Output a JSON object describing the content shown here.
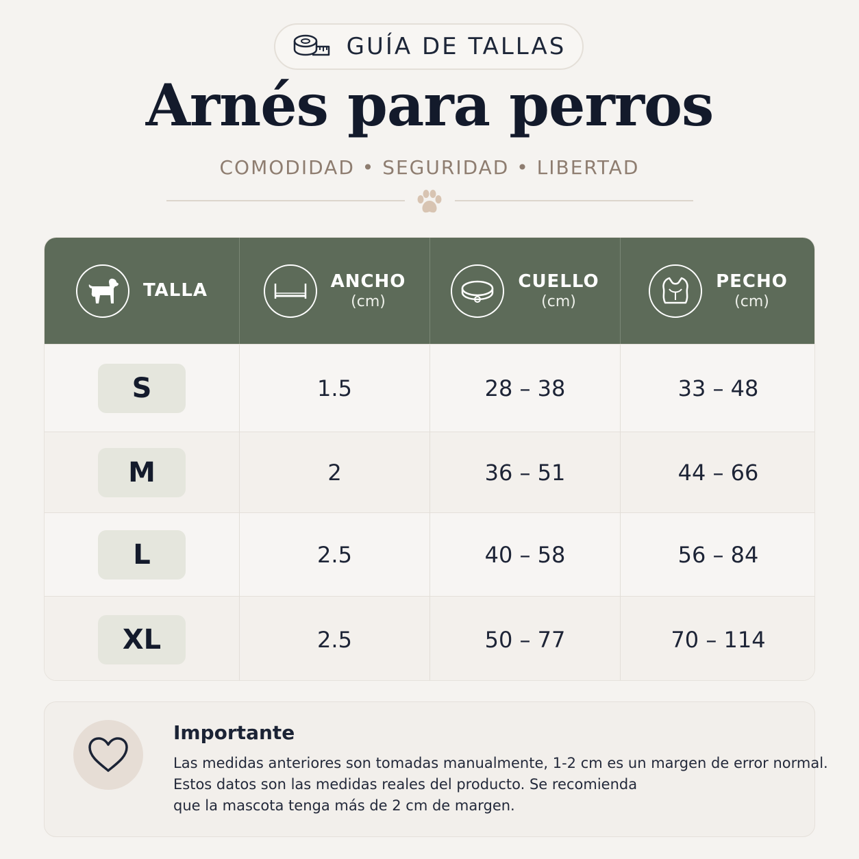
{
  "badge": {
    "label": "GUÍA DE TALLAS",
    "icon": "measuring-tape-icon"
  },
  "title": "Arnés para perros",
  "tagline": "COMODIDAD • SEGURIDAD • LIBERTAD",
  "divider_icon": "paw-icon",
  "colors": {
    "header": "#5d6b59",
    "background": "#f5f3f0",
    "size_pill": "#e5e6dd",
    "accent_text": "#8e7d70"
  },
  "table": {
    "headers": [
      {
        "label": "TALLA",
        "unit": "",
        "icon": "dog-icon"
      },
      {
        "label": "ANCHO",
        "unit": "(cm)",
        "icon": "width-icon"
      },
      {
        "label": "CUELLO",
        "unit": "(cm)",
        "icon": "collar-icon"
      },
      {
        "label": "PECHO",
        "unit": "(cm)",
        "icon": "harness-vest-icon"
      }
    ],
    "rows": [
      {
        "size": "S",
        "ancho": "1.5",
        "cuello": "28 – 38",
        "pecho": "33 – 48"
      },
      {
        "size": "M",
        "ancho": "2",
        "cuello": "36 – 51",
        "pecho": "44 – 66"
      },
      {
        "size": "L",
        "ancho": "2.5",
        "cuello": "40 – 58",
        "pecho": "56 – 84"
      },
      {
        "size": "XL",
        "ancho": "2.5",
        "cuello": "50 – 77",
        "pecho": "70 – 114"
      }
    ]
  },
  "note": {
    "icon": "heart-icon",
    "title": "Importante",
    "lines": [
      "Las medidas anteriores son tomadas manualmente, 1-2 cm es un margen de error normal.",
      "Estos datos son las medidas reales del producto. Se recomienda",
      "que la mascota tenga más de 2 cm de margen."
    ]
  }
}
